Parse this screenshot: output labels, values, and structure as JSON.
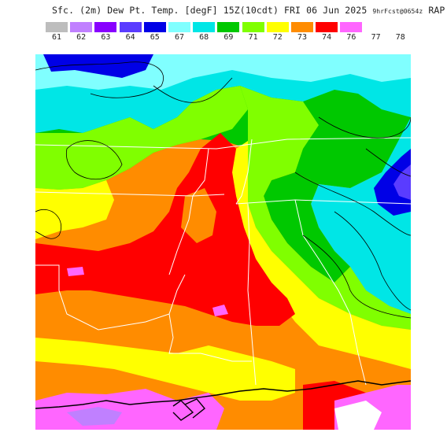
{
  "header": {
    "title_main": "Sfc. (2m) Dew Pt. Temp. [degF] 15Z(10cdt) FRI 06 Jun 2025",
    "title_run": "9hrFcst@0654z",
    "title_model": "RAP"
  },
  "legend": {
    "swatches": [
      {
        "color": "#bdbdbd"
      },
      {
        "color": "#c080ff"
      },
      {
        "color": "#8800ff"
      },
      {
        "color": "#5a3cff"
      },
      {
        "color": "#0000e6"
      },
      {
        "color": "#80ffff"
      },
      {
        "color": "#00e6e6"
      },
      {
        "color": "#00c800"
      },
      {
        "color": "#80ff00"
      },
      {
        "color": "#ffff00"
      },
      {
        "color": "#ff8c00"
      },
      {
        "color": "#ff0000"
      },
      {
        "color": "#ff66ff"
      }
    ],
    "ticks": [
      "61",
      "62",
      "63",
      "64",
      "65",
      "67",
      "68",
      "69",
      "71",
      "72",
      "73",
      "74",
      "76",
      "77",
      "78"
    ]
  },
  "map": {
    "colors": {
      "deep_blue": "#0000e6",
      "violet": "#5a3cff",
      "cyan": "#00e6e6",
      "light_cyan": "#80ffff",
      "green": "#00c800",
      "lime": "#80ff00",
      "yellow": "#ffff00",
      "orange": "#ff8c00",
      "red": "#ff0000",
      "magenta": "#ff66ff",
      "white_max": "#ffffff",
      "boundary": "#ffffff",
      "coast": "#000000",
      "contour": "#000000"
    }
  }
}
